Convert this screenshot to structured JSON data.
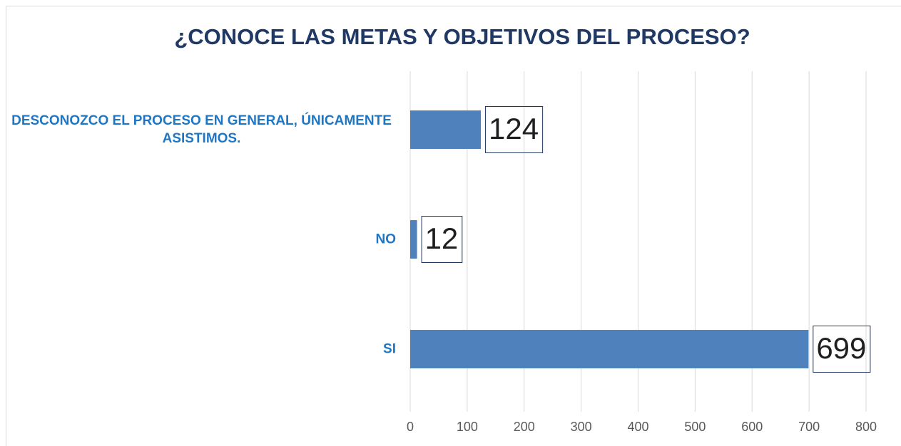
{
  "chart_data": {
    "type": "bar",
    "orientation": "horizontal",
    "title": "¿CONOCE LAS METAS Y OBJETIVOS DEL PROCESO?",
    "categories": [
      "DESCONOZCO EL PROCESO EN GENERAL, ÚNICAMENTE ASISTIMOS.",
      "NO",
      "SI"
    ],
    "values": [
      124,
      12,
      699
    ],
    "color": "#4f81bd",
    "xlim": [
      0,
      800
    ],
    "xticks": [
      0,
      100,
      200,
      300,
      400,
      500,
      600,
      700,
      800
    ],
    "grid": true
  }
}
